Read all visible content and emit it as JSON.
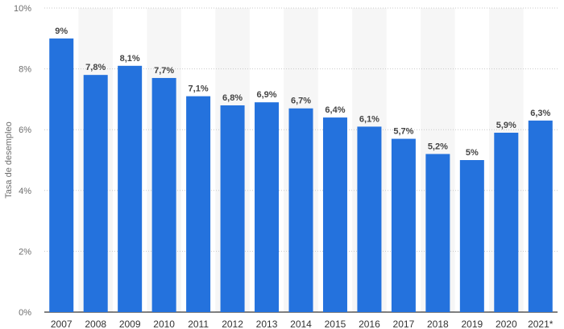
{
  "colors": {
    "bar": "#2472dd",
    "alt_column_bg": "#f6f6f6",
    "grid": "#c9c9c9",
    "axis_line": "#000000"
  },
  "chart_data": {
    "type": "bar",
    "categories": [
      "2007",
      "2008",
      "2009",
      "2010",
      "2011",
      "2012",
      "2013",
      "2014",
      "2015",
      "2016",
      "2017",
      "2018",
      "2019",
      "2020",
      "2021*"
    ],
    "values": [
      9.0,
      7.8,
      8.1,
      7.7,
      7.1,
      6.8,
      6.9,
      6.7,
      6.4,
      6.1,
      5.7,
      5.2,
      5.0,
      5.9,
      6.3
    ],
    "data_labels": [
      "9%",
      "7,8%",
      "8,1%",
      "7,7%",
      "7,1%",
      "6,8%",
      "6,9%",
      "6,7%",
      "6,4%",
      "6,1%",
      "5,7%",
      "5,2%",
      "5%",
      "5,9%",
      "6,3%"
    ],
    "ylabel": "Tasa de desempleo",
    "xlabel": "",
    "ylim": [
      0,
      10
    ],
    "yticks": [
      0,
      2,
      4,
      6,
      8,
      10
    ],
    "ytick_labels": [
      "0%",
      "2%",
      "4%",
      "6%",
      "8%",
      "10%"
    ],
    "grid": "horizontal dotted",
    "alternating_column_shading": true,
    "legend": "none"
  }
}
